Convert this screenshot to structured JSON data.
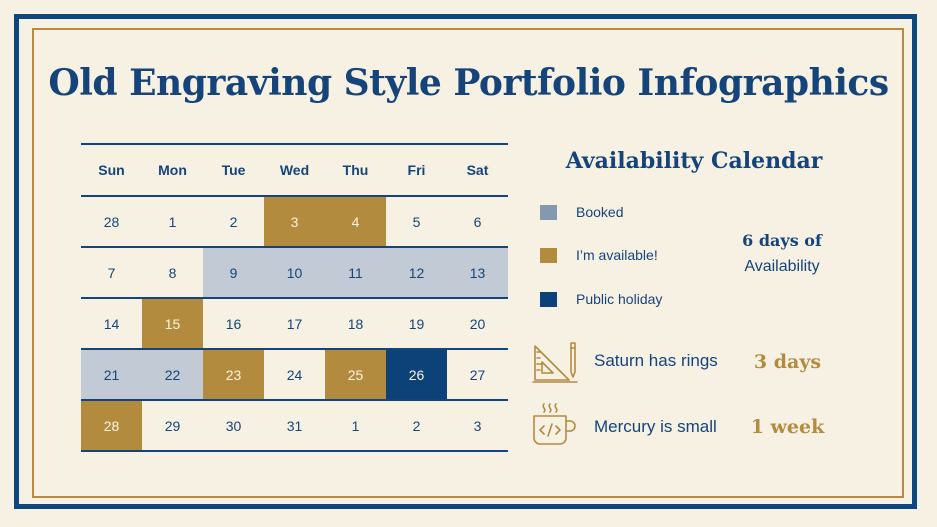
{
  "title": "Old Engraving Style Portfolio Infographics",
  "calendar": {
    "weekdays": [
      "Sun",
      "Mon",
      "Tue",
      "Wed",
      "Thu",
      "Fri",
      "Sat"
    ],
    "weeks": [
      [
        {
          "d": "28",
          "s": ""
        },
        {
          "d": "1",
          "s": ""
        },
        {
          "d": "2",
          "s": ""
        },
        {
          "d": "3",
          "s": "available"
        },
        {
          "d": "4",
          "s": "available"
        },
        {
          "d": "5",
          "s": ""
        },
        {
          "d": "6",
          "s": ""
        }
      ],
      [
        {
          "d": "7",
          "s": ""
        },
        {
          "d": "8",
          "s": ""
        },
        {
          "d": "9",
          "s": "booked"
        },
        {
          "d": "10",
          "s": "booked"
        },
        {
          "d": "11",
          "s": "booked"
        },
        {
          "d": "12",
          "s": "booked"
        },
        {
          "d": "13",
          "s": "booked"
        }
      ],
      [
        {
          "d": "14",
          "s": ""
        },
        {
          "d": "15",
          "s": "available"
        },
        {
          "d": "16",
          "s": ""
        },
        {
          "d": "17",
          "s": ""
        },
        {
          "d": "18",
          "s": ""
        },
        {
          "d": "19",
          "s": ""
        },
        {
          "d": "20",
          "s": ""
        }
      ],
      [
        {
          "d": "21",
          "s": "booked"
        },
        {
          "d": "22",
          "s": "booked"
        },
        {
          "d": "23",
          "s": "available"
        },
        {
          "d": "24",
          "s": ""
        },
        {
          "d": "25",
          "s": "available"
        },
        {
          "d": "26",
          "s": "holiday"
        },
        {
          "d": "27",
          "s": ""
        }
      ],
      [
        {
          "d": "28",
          "s": "available"
        },
        {
          "d": "29",
          "s": ""
        },
        {
          "d": "30",
          "s": ""
        },
        {
          "d": "31",
          "s": ""
        },
        {
          "d": "1",
          "s": ""
        },
        {
          "d": "2",
          "s": ""
        },
        {
          "d": "3",
          "s": ""
        }
      ]
    ]
  },
  "availability": {
    "title": "Availability Calendar",
    "legend": [
      {
        "label": "Booked",
        "color": "#8499ae"
      },
      {
        "label": "I’m available!",
        "color": "#b38b3f"
      },
      {
        "label": "Public holiday",
        "color": "#0c4277"
      }
    ],
    "days_count": "6 days of",
    "days_sub": "Availability"
  },
  "stats": [
    {
      "icon": "drafting-tools-icon",
      "label": "Saturn has rings",
      "value": "3 days"
    },
    {
      "icon": "code-mug-icon",
      "label": "Mercury is small",
      "value": "1 week"
    }
  ],
  "colors": {
    "navy": "#15447a",
    "gold": "#b38b3f",
    "cream": "#f7f1e3",
    "booked": "#c2cbd5",
    "holiday": "#0c4277"
  }
}
